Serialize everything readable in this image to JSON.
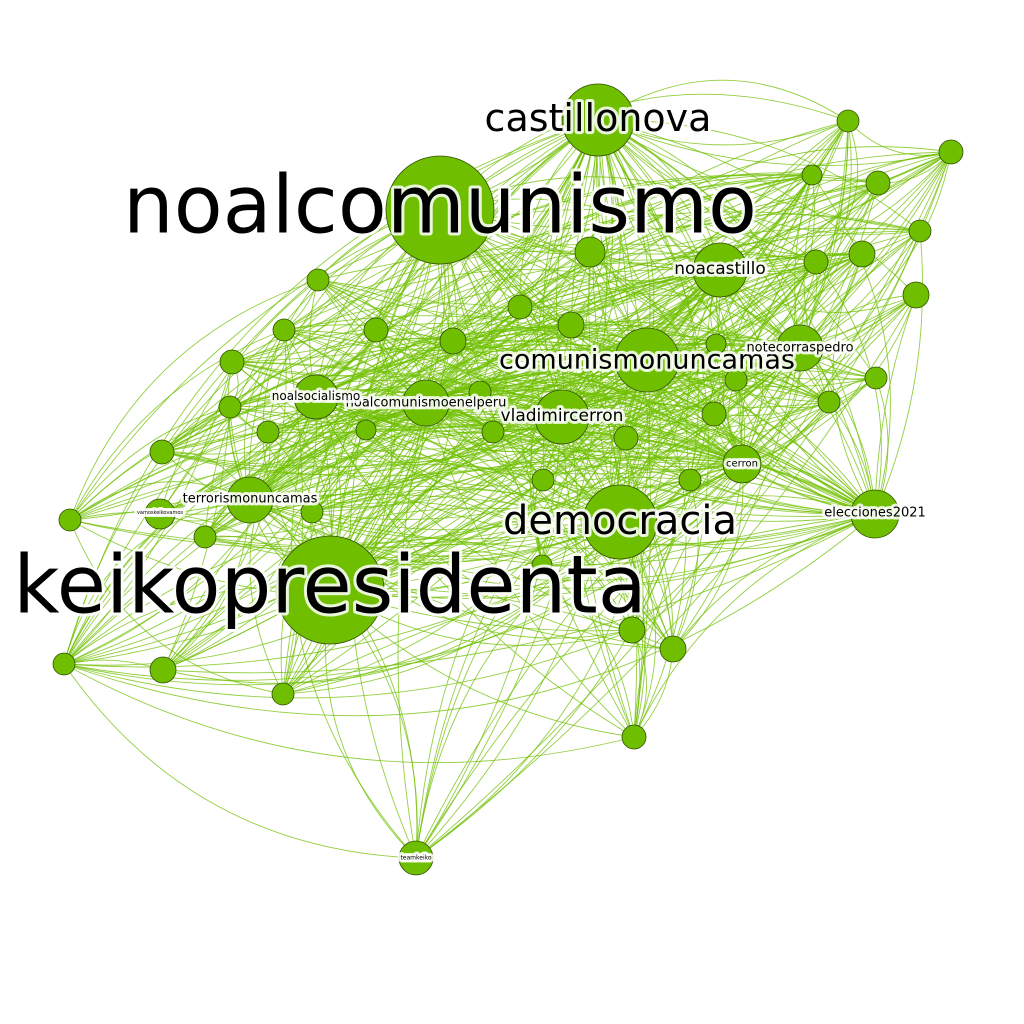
{
  "graph": {
    "colors": {
      "node": "#6fbf00",
      "edge": "#6fbf00",
      "label": "#000000",
      "node_border": "#2f4f00"
    },
    "labels": {
      "noalcomunismo": "noalcomunismo",
      "keikopresidenta": "keikopresidenta",
      "castillonova": "castillonova",
      "democracia": "democracia",
      "comunismonuncamas": "comunismonuncamas",
      "noacastillo": "noacastillo",
      "vladimircerron": "vladimircerron",
      "noalcomunismoenelperu": "noalcomunismoenelperu",
      "noalsocialismo": "noalsocialismo",
      "notecorraspedro": "notecorraspedro",
      "terrorismonuncamas": "terrorismonuncamas",
      "elecciones2021": "elecciones2021",
      "cerron": "cerron",
      "teamkeiko": "teamkeiko",
      "vamos": "vamoskeikovamos"
    }
  }
}
